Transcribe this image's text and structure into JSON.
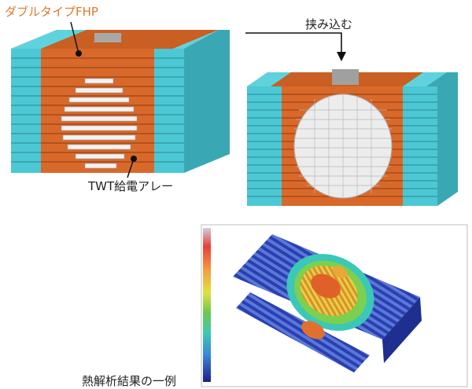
{
  "labels": {
    "double_fhp": "ダブルタイプFHP",
    "twt_array": "TWT給電アレー",
    "insert": "挟み込む",
    "thermal_example": "熱解析結果の一例"
  },
  "colors": {
    "fin_orange": "#d9692a",
    "cyan": "#4cc8d4",
    "white_block": "#eeeeee",
    "gray_block": "#9a9a9a",
    "thermal_blue": "#2a3fb0",
    "thermal_hot": "#d83a1f"
  }
}
